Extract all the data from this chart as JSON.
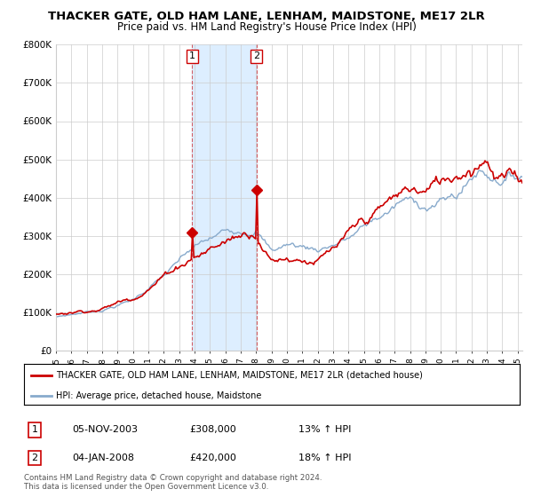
{
  "title": "THACKER GATE, OLD HAM LANE, LENHAM, MAIDSTONE, ME17 2LR",
  "subtitle": "Price paid vs. HM Land Registry's House Price Index (HPI)",
  "ylabel_ticks": [
    "£0",
    "£100K",
    "£200K",
    "£300K",
    "£400K",
    "£500K",
    "£600K",
    "£700K",
    "£800K"
  ],
  "ylim": [
    0,
    800000
  ],
  "xlim_start": 1995.0,
  "xlim_end": 2025.3,
  "sale1_year": 2003.85,
  "sale1_price": 308000,
  "sale2_year": 2008.02,
  "sale2_price": 420000,
  "shade_color": "#ddeeff",
  "line1_color": "#cc0000",
  "line2_color": "#88aacc",
  "grid_color": "#cccccc",
  "legend_label1": "THACKER GATE, OLD HAM LANE, LENHAM, MAIDSTONE, ME17 2LR (detached house)",
  "legend_label2": "HPI: Average price, detached house, Maidstone",
  "table_row1": [
    "1",
    "05-NOV-2003",
    "£308,000",
    "13% ↑ HPI"
  ],
  "table_row2": [
    "2",
    "04-JAN-2008",
    "£420,000",
    "18% ↑ HPI"
  ],
  "footer": "Contains HM Land Registry data © Crown copyright and database right 2024.\nThis data is licensed under the Open Government Licence v3.0.",
  "background_color": "#ffffff",
  "fig_width": 6.0,
  "fig_height": 5.6,
  "dpi": 100
}
